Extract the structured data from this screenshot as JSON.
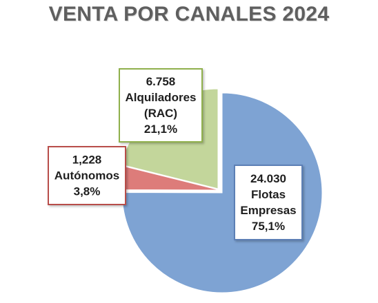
{
  "title": "VENTA POR CANALES 2024",
  "chart_data": {
    "type": "pie",
    "title": "VENTA POR CANALES 2024",
    "slices": [
      {
        "key": "flotas",
        "value": 24030,
        "value_label": "24.030",
        "name_lines": [
          "Flotas",
          "Empresas"
        ],
        "percent": 75.1,
        "percent_label": "75,1%",
        "color": "#7ea3d3",
        "border_color": "#5b7fb5"
      },
      {
        "key": "autonomos",
        "value": 1228,
        "value_label": "1,228",
        "name_lines": [
          "Autónomos"
        ],
        "percent": 3.8,
        "percent_label": "3,8%",
        "color": "#dd7c7a",
        "border_color": "#b84d4a"
      },
      {
        "key": "rac",
        "value": 6758,
        "value_label": "6.758",
        "name_lines": [
          "Alquiladores",
          "(RAC)"
        ],
        "percent": 21.1,
        "percent_label": "21,1%",
        "color": "#c3d69b",
        "border_color": "#8fb04c"
      }
    ],
    "legend": "none"
  }
}
